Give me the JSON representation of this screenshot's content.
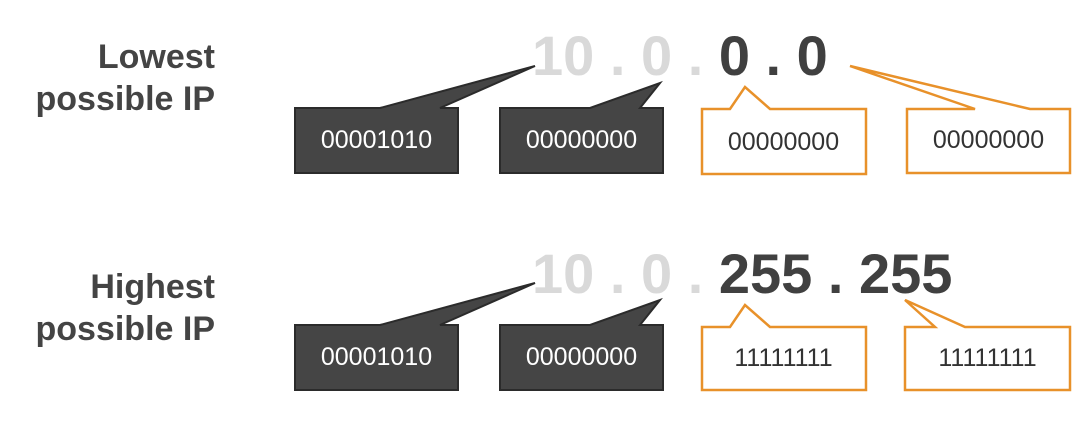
{
  "rows": [
    {
      "label_line1": "Lowest",
      "label_line2": "possible IP",
      "ip": {
        "o1": "10",
        "o2": "0",
        "o3": "0",
        "o4": "0",
        "dot": " . "
      },
      "binary": [
        "00001010",
        "00000000",
        "00000000",
        "00000000"
      ]
    },
    {
      "label_line1": "Highest",
      "label_line2": "possible IP",
      "ip": {
        "o1": "10",
        "o2": "0",
        "o3": "255",
        "o4": "255",
        "dot": " . "
      },
      "binary": [
        "00001010",
        "00000000",
        "11111111",
        "11111111"
      ]
    }
  ],
  "colors": {
    "fixed_box_fill": "#454545",
    "fixed_box_border": "#2b2b2b",
    "variable_box_border": "#e8912a",
    "fixed_octet_text": "#d9d9d9",
    "variable_octet_text": "#404040",
    "label_text": "#444444"
  }
}
